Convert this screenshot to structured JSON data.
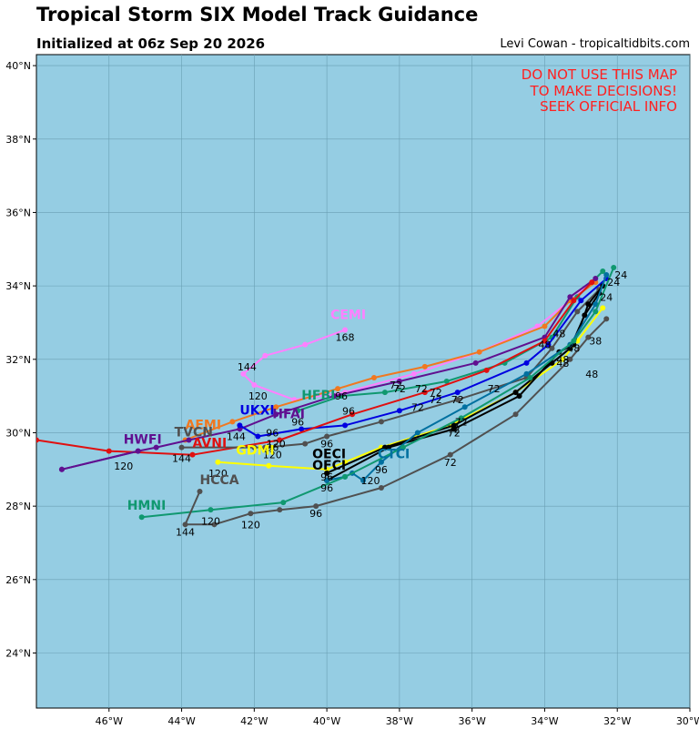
{
  "header": {
    "title": "Tropical Storm SIX Model Track Guidance",
    "subtitle": "Initialized at 06z Sep 20 2026",
    "credit": "Levi Cowan - tropicaltidbits.com"
  },
  "warning": [
    "DO NOT USE THIS MAP",
    "TO MAKE DECISIONS!",
    "SEEK OFFICIAL INFO"
  ],
  "colors": {
    "ocean": "#95cde3",
    "grid": "#6a9fb3",
    "warning": "#ff2020"
  },
  "map": {
    "lon_range": [
      -48,
      -30
    ],
    "lat_range": [
      22.5,
      40.3
    ],
    "lon_ticks": [
      {
        "v": -46,
        "t": "46°W"
      },
      {
        "v": -44,
        "t": "44°W"
      },
      {
        "v": -42,
        "t": "42°W"
      },
      {
        "v": -40,
        "t": "40°W"
      },
      {
        "v": -38,
        "t": "38°W"
      },
      {
        "v": -36,
        "t": "36°W"
      },
      {
        "v": -34,
        "t": "34°W"
      },
      {
        "v": -32,
        "t": "32°W"
      },
      {
        "v": -30,
        "t": "30°W"
      }
    ],
    "lat_ticks": [
      {
        "v": 24,
        "t": "24°N"
      },
      {
        "v": 26,
        "t": "26°N"
      },
      {
        "v": 28,
        "t": "28°N"
      },
      {
        "v": 30,
        "t": "30°N"
      },
      {
        "v": 32,
        "t": "32°N"
      },
      {
        "v": 34,
        "t": "34°N"
      },
      {
        "v": 36,
        "t": "36°N"
      },
      {
        "v": 38,
        "t": "38°N"
      },
      {
        "v": 40,
        "t": "40°N"
      }
    ]
  },
  "chart_data": {
    "type": "map",
    "tracks": [
      {
        "name": "CEMI",
        "color": "#ff80ff",
        "points": [
          [
            -32.7,
            34.1
          ],
          [
            -33.3,
            33.6
          ],
          [
            -34.2,
            32.9
          ],
          [
            -35.8,
            32.2
          ],
          [
            -37.6,
            31.6
          ],
          [
            -39.5,
            31.1
          ],
          [
            -40.9,
            30.9
          ],
          [
            -42.0,
            31.3
          ],
          [
            -42.3,
            31.6
          ],
          [
            -41.7,
            32.1
          ],
          [
            -40.6,
            32.4
          ],
          [
            -39.5,
            32.8
          ]
        ],
        "label": [
          -39.9,
          33.1
        ],
        "hours": [
          {
            "t": "168",
            "p": [
              -39.5,
              32.5
            ]
          },
          {
            "t": "144",
            "p": [
              -42.2,
              31.7
            ]
          },
          {
            "t": "120",
            "p": [
              -41.9,
              30.9
            ]
          }
        ]
      },
      {
        "name": "AEMI",
        "color": "#f07820",
        "points": [
          [
            -32.6,
            34.1
          ],
          [
            -33.3,
            33.6
          ],
          [
            -34.0,
            32.9
          ],
          [
            -35.8,
            32.2
          ],
          [
            -37.3,
            31.8
          ],
          [
            -38.7,
            31.5
          ],
          [
            -39.7,
            31.2
          ],
          [
            -41.4,
            30.7
          ],
          [
            -42.6,
            30.3
          ],
          [
            -43.9,
            29.8
          ]
        ],
        "label": [
          -43.9,
          30.1
        ],
        "hours": [
          {
            "t": "96",
            "p": [
              -39.6,
              30.9
            ]
          }
        ]
      },
      {
        "name": "HFBI",
        "color": "#109870",
        "points": [
          [
            -32.4,
            34.4
          ],
          [
            -33.1,
            33.7
          ],
          [
            -33.8,
            32.6
          ],
          [
            -35.1,
            31.9
          ],
          [
            -36.7,
            31.4
          ],
          [
            -38.4,
            31.1
          ],
          [
            -39.6,
            31.0
          ],
          [
            -40.8,
            30.6
          ]
        ],
        "label": [
          -40.7,
          30.9
        ],
        "hours": [
          {
            "t": "72",
            "p": [
              -37.0,
              30.8
            ]
          }
        ]
      },
      {
        "name": "HFAI",
        "color": "#601090",
        "points": [
          [
            -32.6,
            34.2
          ],
          [
            -33.3,
            33.7
          ],
          [
            -34.0,
            32.6
          ],
          [
            -35.9,
            31.9
          ],
          [
            -38.0,
            31.4
          ],
          [
            -39.8,
            31.0
          ],
          [
            -41.4,
            30.5
          ],
          [
            -42.4,
            30.1
          ],
          [
            -43.8,
            29.8
          ],
          [
            -44.7,
            29.6
          ],
          [
            -45.2,
            29.5
          ],
          [
            -47.3,
            29.0
          ]
        ],
        "label": [
          -41.5,
          30.4
        ],
        "hours": [
          {
            "t": "72",
            "p": [
              -38.0,
              31.1
            ]
          },
          {
            "t": "96",
            "p": [
              -40.8,
              30.2
            ]
          }
        ]
      },
      {
        "name": "UKXI",
        "color": "#0000e0",
        "points": [
          [
            -32.3,
            34.2
          ],
          [
            -33.0,
            33.6
          ],
          [
            -33.9,
            32.4
          ],
          [
            -34.5,
            31.9
          ],
          [
            -36.4,
            31.1
          ],
          [
            -38.0,
            30.6
          ],
          [
            -39.5,
            30.2
          ],
          [
            -40.7,
            30.1
          ],
          [
            -41.9,
            29.9
          ],
          [
            -42.4,
            30.2
          ]
        ],
        "label": [
          -42.4,
          30.5
        ],
        "hours": [
          {
            "t": "96",
            "p": [
              -41.5,
              29.9
            ]
          },
          {
            "t": "144",
            "p": [
              -42.5,
              29.8
            ]
          }
        ]
      },
      {
        "name": "AVNI",
        "color": "#e01010",
        "points": [
          [
            -32.7,
            34.1
          ],
          [
            -33.2,
            33.6
          ],
          [
            -34.0,
            32.5
          ],
          [
            -35.6,
            31.7
          ],
          [
            -37.3,
            31.1
          ],
          [
            -39.3,
            30.5
          ],
          [
            -41.3,
            29.8
          ],
          [
            -43.7,
            29.4
          ],
          [
            -46.0,
            29.5
          ],
          [
            -48.0,
            29.8
          ]
        ],
        "label": [
          -43.7,
          29.6
        ],
        "hours": [
          {
            "t": "72",
            "p": [
              -37.0,
              31.0
            ]
          },
          {
            "t": "96",
            "p": [
              -39.4,
              30.5
            ]
          },
          {
            "t": "120",
            "p": [
              -41.4,
              29.6
            ]
          },
          {
            "t": "144",
            "p": [
              -44.0,
              29.2
            ]
          },
          {
            "t": "120",
            "p": [
              -45.6,
              29.0
            ]
          }
        ]
      },
      {
        "name": "HWFI",
        "color": "#601090",
        "points": [
          [
            -47.3,
            29.0
          ],
          [
            -45.2,
            29.5
          ]
        ],
        "label": [
          -45.6,
          29.7
        ],
        "hours": []
      },
      {
        "name": "TVCN",
        "color": "#505050",
        "points": [
          [
            -32.5,
            33.9
          ],
          [
            -33.1,
            33.3
          ],
          [
            -33.8,
            32.3
          ],
          [
            -34.5,
            31.5
          ],
          [
            -36.4,
            30.9
          ],
          [
            -38.5,
            30.3
          ],
          [
            -40.0,
            29.9
          ],
          [
            -40.6,
            29.7
          ],
          [
            -41.7,
            29.6
          ],
          [
            -42.0,
            29.6
          ],
          [
            -44.0,
            29.6
          ]
        ],
        "label": [
          -44.2,
          29.9
        ],
        "hours": [
          {
            "t": "96",
            "p": [
              -41.5,
              29.5
            ]
          },
          {
            "t": "120",
            "p": [
              -41.5,
              29.3
            ]
          },
          {
            "t": "96",
            "p": [
              -40.0,
              29.6
            ]
          }
        ]
      },
      {
        "name": "GDMI",
        "color": "#ffff00",
        "points": [
          [
            -32.4,
            33.4
          ],
          [
            -33.1,
            32.5
          ],
          [
            -33.5,
            32.0
          ],
          [
            -34.8,
            31.1
          ],
          [
            -36.6,
            30.2
          ],
          [
            -38.5,
            29.6
          ],
          [
            -39.5,
            29.2
          ],
          [
            -40.0,
            29.0
          ],
          [
            -41.6,
            29.1
          ],
          [
            -43.0,
            29.2
          ]
        ],
        "label": [
          -42.5,
          29.4
        ],
        "hours": [
          {
            "t": "120",
            "p": [
              -43.0,
              28.8
            ]
          }
        ]
      },
      {
        "name": "OECI",
        "color": "#000000",
        "points": [
          [
            -32.5,
            33.8
          ],
          [
            -32.9,
            33.2
          ],
          [
            -33.3,
            32.3
          ],
          [
            -33.8,
            31.9
          ],
          [
            -34.8,
            31.1
          ],
          [
            -36.5,
            30.2
          ],
          [
            -38.4,
            29.6
          ],
          [
            -40.0,
            28.9
          ]
        ],
        "label": [
          -40.4,
          29.3
        ],
        "hours": [
          {
            "t": "48",
            "p": [
              -32.7,
              31.5
            ]
          },
          {
            "t": "72",
            "p": [
              -36.5,
              29.9
            ]
          },
          {
            "t": "96",
            "p": [
              -40.0,
              28.7
            ]
          }
        ]
      },
      {
        "name": "OFCI",
        "color": "#000000",
        "points": [
          [
            -32.4,
            34.0
          ],
          [
            -32.8,
            33.5
          ],
          [
            -33.2,
            32.4
          ],
          [
            -33.6,
            32.2
          ],
          [
            -34.7,
            31.0
          ],
          [
            -36.5,
            30.1
          ],
          [
            -38.3,
            29.6
          ],
          [
            -40.0,
            28.7
          ]
        ],
        "label": [
          -40.4,
          29.0
        ],
        "hours": [
          {
            "t": "48",
            "p": [
              -33.5,
              31.9
            ]
          },
          {
            "t": "72",
            "p": [
              -36.5,
              30.0
            ]
          },
          {
            "t": "96",
            "p": [
              -40.0,
              28.4
            ]
          }
        ]
      },
      {
        "name": "CTCI",
        "color": "#0070a0",
        "points": [
          [
            -32.3,
            34.3
          ],
          [
            -32.6,
            33.5
          ],
          [
            -33.3,
            32.4
          ],
          [
            -34.5,
            31.6
          ],
          [
            -36.2,
            30.7
          ],
          [
            -37.5,
            30.0
          ],
          [
            -38.5,
            29.2
          ],
          [
            -39.0,
            28.7
          ],
          [
            -39.3,
            28.9
          ],
          [
            -39.5,
            28.8
          ],
          [
            -40.0,
            28.7
          ]
        ],
        "label": [
          -38.6,
          29.3
        ],
        "hours": [
          {
            "t": "120",
            "p": [
              -38.8,
              28.6
            ]
          },
          {
            "t": "96",
            "p": [
              -38.5,
              28.9
            ]
          }
        ]
      },
      {
        "name": "HMNI",
        "color": "#109870",
        "points": [
          [
            -32.1,
            34.5
          ],
          [
            -32.6,
            33.3
          ],
          [
            -33.2,
            32.5
          ],
          [
            -34.4,
            31.5
          ],
          [
            -36.3,
            30.4
          ],
          [
            -37.9,
            29.6
          ],
          [
            -39.5,
            28.8
          ],
          [
            -41.2,
            28.1
          ],
          [
            -43.2,
            27.9
          ],
          [
            -45.1,
            27.7
          ]
        ],
        "label": [
          -45.5,
          27.9
        ],
        "hours": [
          {
            "t": "120",
            "p": [
              -43.2,
              27.5
            ]
          }
        ]
      },
      {
        "name": "HCCA",
        "color": "#505050",
        "points": [
          [
            -32.3,
            33.1
          ],
          [
            -32.8,
            32.6
          ],
          [
            -33.3,
            32.0
          ],
          [
            -34.8,
            30.5
          ],
          [
            -36.6,
            29.4
          ],
          [
            -38.5,
            28.5
          ],
          [
            -40.3,
            28.0
          ],
          [
            -41.3,
            27.9
          ],
          [
            -42.1,
            27.8
          ],
          [
            -43.1,
            27.5
          ],
          [
            -43.9,
            27.5
          ],
          [
            -43.5,
            28.4
          ]
        ],
        "label": [
          -43.5,
          28.6
        ],
        "hours": [
          {
            "t": "96",
            "p": [
              -40.3,
              27.7
            ]
          },
          {
            "t": "120",
            "p": [
              -42.1,
              27.4
            ]
          },
          {
            "t": "144",
            "p": [
              -43.9,
              27.2
            ]
          },
          {
            "t": "72",
            "p": [
              -36.6,
              29.1
            ]
          }
        ]
      }
    ],
    "genesis_hours": [
      {
        "t": "24",
        "p": [
          -31.9,
          34.2
        ]
      },
      {
        "t": "24",
        "p": [
          -32.1,
          34.0
        ]
      },
      {
        "t": "24",
        "p": [
          -32.3,
          33.6
        ]
      },
      {
        "t": "48",
        "p": [
          -33.6,
          32.6
        ]
      },
      {
        "t": "48",
        "p": [
          -34.0,
          32.3
        ]
      },
      {
        "t": "48",
        "p": [
          -33.2,
          32.2
        ]
      },
      {
        "t": "48",
        "p": [
          -33.5,
          31.8
        ]
      },
      {
        "t": "38",
        "p": [
          -32.6,
          32.4
        ]
      },
      {
        "t": "72",
        "p": [
          -35.4,
          31.1
        ]
      },
      {
        "t": "72",
        "p": [
          -36.4,
          30.8
        ]
      },
      {
        "t": "72",
        "p": [
          -37.4,
          31.1
        ]
      },
      {
        "t": "72",
        "p": [
          -38.1,
          31.2
        ]
      },
      {
        "t": "72",
        "p": [
          -37.5,
          30.6
        ]
      },
      {
        "t": "72",
        "p": [
          -36.3,
          30.2
        ]
      }
    ]
  }
}
